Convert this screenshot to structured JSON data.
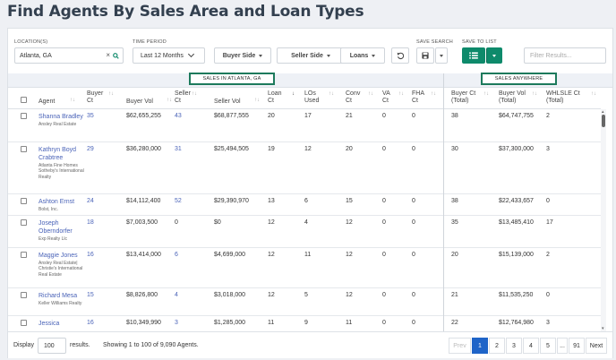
{
  "page": {
    "title": "Find Agents By Sales Area and Loan Types"
  },
  "filters": {
    "location_label": "LOCATION(S)",
    "location_value": "Atlanta, GA",
    "time_period_label": "TIME PERIOD",
    "time_period_value": "Last 12 Months",
    "buyer_side": "Buyer Side",
    "seller_side": "Seller Side",
    "loans": "Loans",
    "save_search_label": "SAVE SEARCH",
    "save_to_list_label": "SAVE TO LIST",
    "filter_placeholder": "Filter Results..."
  },
  "sections": {
    "local": "SALES IN ATLANTA, GA",
    "anywhere": "SALES ANYWHERE"
  },
  "columns": {
    "agent": "Agent",
    "buyer_ct_1": "Buyer",
    "buyer_ct_2": "Ct",
    "buyer_vol": "Buyer Vol",
    "seller_ct_1": "Seller",
    "seller_ct_2": "Ct",
    "seller_vol": "Seller Vol",
    "loan_ct_1": "Loan",
    "loan_ct_2": "Ct",
    "los_1": "LOs",
    "los_2": "Used",
    "conv_1": "Conv",
    "conv_2": "Ct",
    "va_1": "VA",
    "va_2": "Ct",
    "fha_1": "FHA",
    "fha_2": "Ct",
    "buyer_total_1": "Buyer Ct",
    "buyer_total_2": "(Total)",
    "buyer_vol_total_1": "Buyer Vol",
    "buyer_vol_total_2": "(Total)",
    "whlsle_1": "WHLSLE Ct",
    "whlsle_2": "(Total)"
  },
  "rows": [
    {
      "name": "Shanna Bradley",
      "brokerage": "Ansley Real Estate",
      "buyer_ct": "35",
      "buyer_vol": "$62,655,255",
      "seller_ct": "43",
      "seller_vol": "$68,877,555",
      "loan_ct": "20",
      "los_used": "17",
      "conv_ct": "21",
      "va_ct": "0",
      "fha_ct": "0",
      "buyer_ct_total": "38",
      "buyer_vol_total": "$64,747,755",
      "whlsle_ct": "2"
    },
    {
      "name": "Kathryn Boyd Crabtree",
      "brokerage": "Atlanta Fine Homes Sotheby's International Realty",
      "buyer_ct": "29",
      "buyer_vol": "$36,280,000",
      "seller_ct": "31",
      "seller_vol": "$25,494,505",
      "loan_ct": "19",
      "los_used": "12",
      "conv_ct": "20",
      "va_ct": "0",
      "fha_ct": "0",
      "buyer_ct_total": "30",
      "buyer_vol_total": "$37,300,000",
      "whlsle_ct": "3"
    },
    {
      "name": "Ashton Ernst",
      "brokerage": "Bolst, Inc.",
      "buyer_ct": "24",
      "buyer_vol": "$14,112,400",
      "seller_ct": "52",
      "seller_vol": "$29,390,970",
      "loan_ct": "13",
      "los_used": "6",
      "conv_ct": "15",
      "va_ct": "0",
      "fha_ct": "0",
      "buyer_ct_total": "38",
      "buyer_vol_total": "$22,433,657",
      "whlsle_ct": "0"
    },
    {
      "name": "Joseph Oberndorfer",
      "brokerage": "Exp Realty Llc",
      "buyer_ct": "18",
      "buyer_vol": "$7,003,500",
      "seller_ct": "0",
      "seller_vol": "$0",
      "loan_ct": "12",
      "los_used": "4",
      "conv_ct": "12",
      "va_ct": "0",
      "fha_ct": "0",
      "buyer_ct_total": "35",
      "buyer_vol_total": "$13,485,410",
      "whlsle_ct": "17"
    },
    {
      "name": "Maggie Jones",
      "brokerage": "Ansley Real Estate| Christie's International Real Estate",
      "buyer_ct": "16",
      "buyer_vol": "$13,414,000",
      "seller_ct": "6",
      "seller_vol": "$4,699,000",
      "loan_ct": "12",
      "los_used": "11",
      "conv_ct": "12",
      "va_ct": "0",
      "fha_ct": "0",
      "buyer_ct_total": "20",
      "buyer_vol_total": "$15,139,000",
      "whlsle_ct": "2"
    },
    {
      "name": "Richard Mesa",
      "brokerage": "Keller Williams Realty",
      "buyer_ct": "15",
      "buyer_vol": "$8,826,800",
      "seller_ct": "4",
      "seller_vol": "$3,018,000",
      "loan_ct": "12",
      "los_used": "5",
      "conv_ct": "12",
      "va_ct": "0",
      "fha_ct": "0",
      "buyer_ct_total": "21",
      "buyer_vol_total": "$11,535,250",
      "whlsle_ct": "0"
    },
    {
      "name": "Jessica",
      "brokerage": "",
      "buyer_ct": "16",
      "buyer_vol": "$10,349,990",
      "seller_ct": "3",
      "seller_vol": "$1,285,000",
      "loan_ct": "11",
      "los_used": "9",
      "conv_ct": "11",
      "va_ct": "0",
      "fha_ct": "0",
      "buyer_ct_total": "22",
      "buyer_vol_total": "$12,764,980",
      "whlsle_ct": "3"
    }
  ],
  "footer": {
    "display_label": "Display",
    "display_value": "100",
    "results_label": "results.",
    "showing": "Showing 1 to 100 of 9,090 Agents."
  },
  "pagination": {
    "prev": "Prev",
    "pages": [
      "1",
      "2",
      "3",
      "4",
      "5",
      "...",
      "91"
    ],
    "next": "Next",
    "active": "1"
  },
  "colors": {
    "accent": "#0e8a6b",
    "link": "#4a63b8",
    "active_page": "#1f64c8"
  }
}
